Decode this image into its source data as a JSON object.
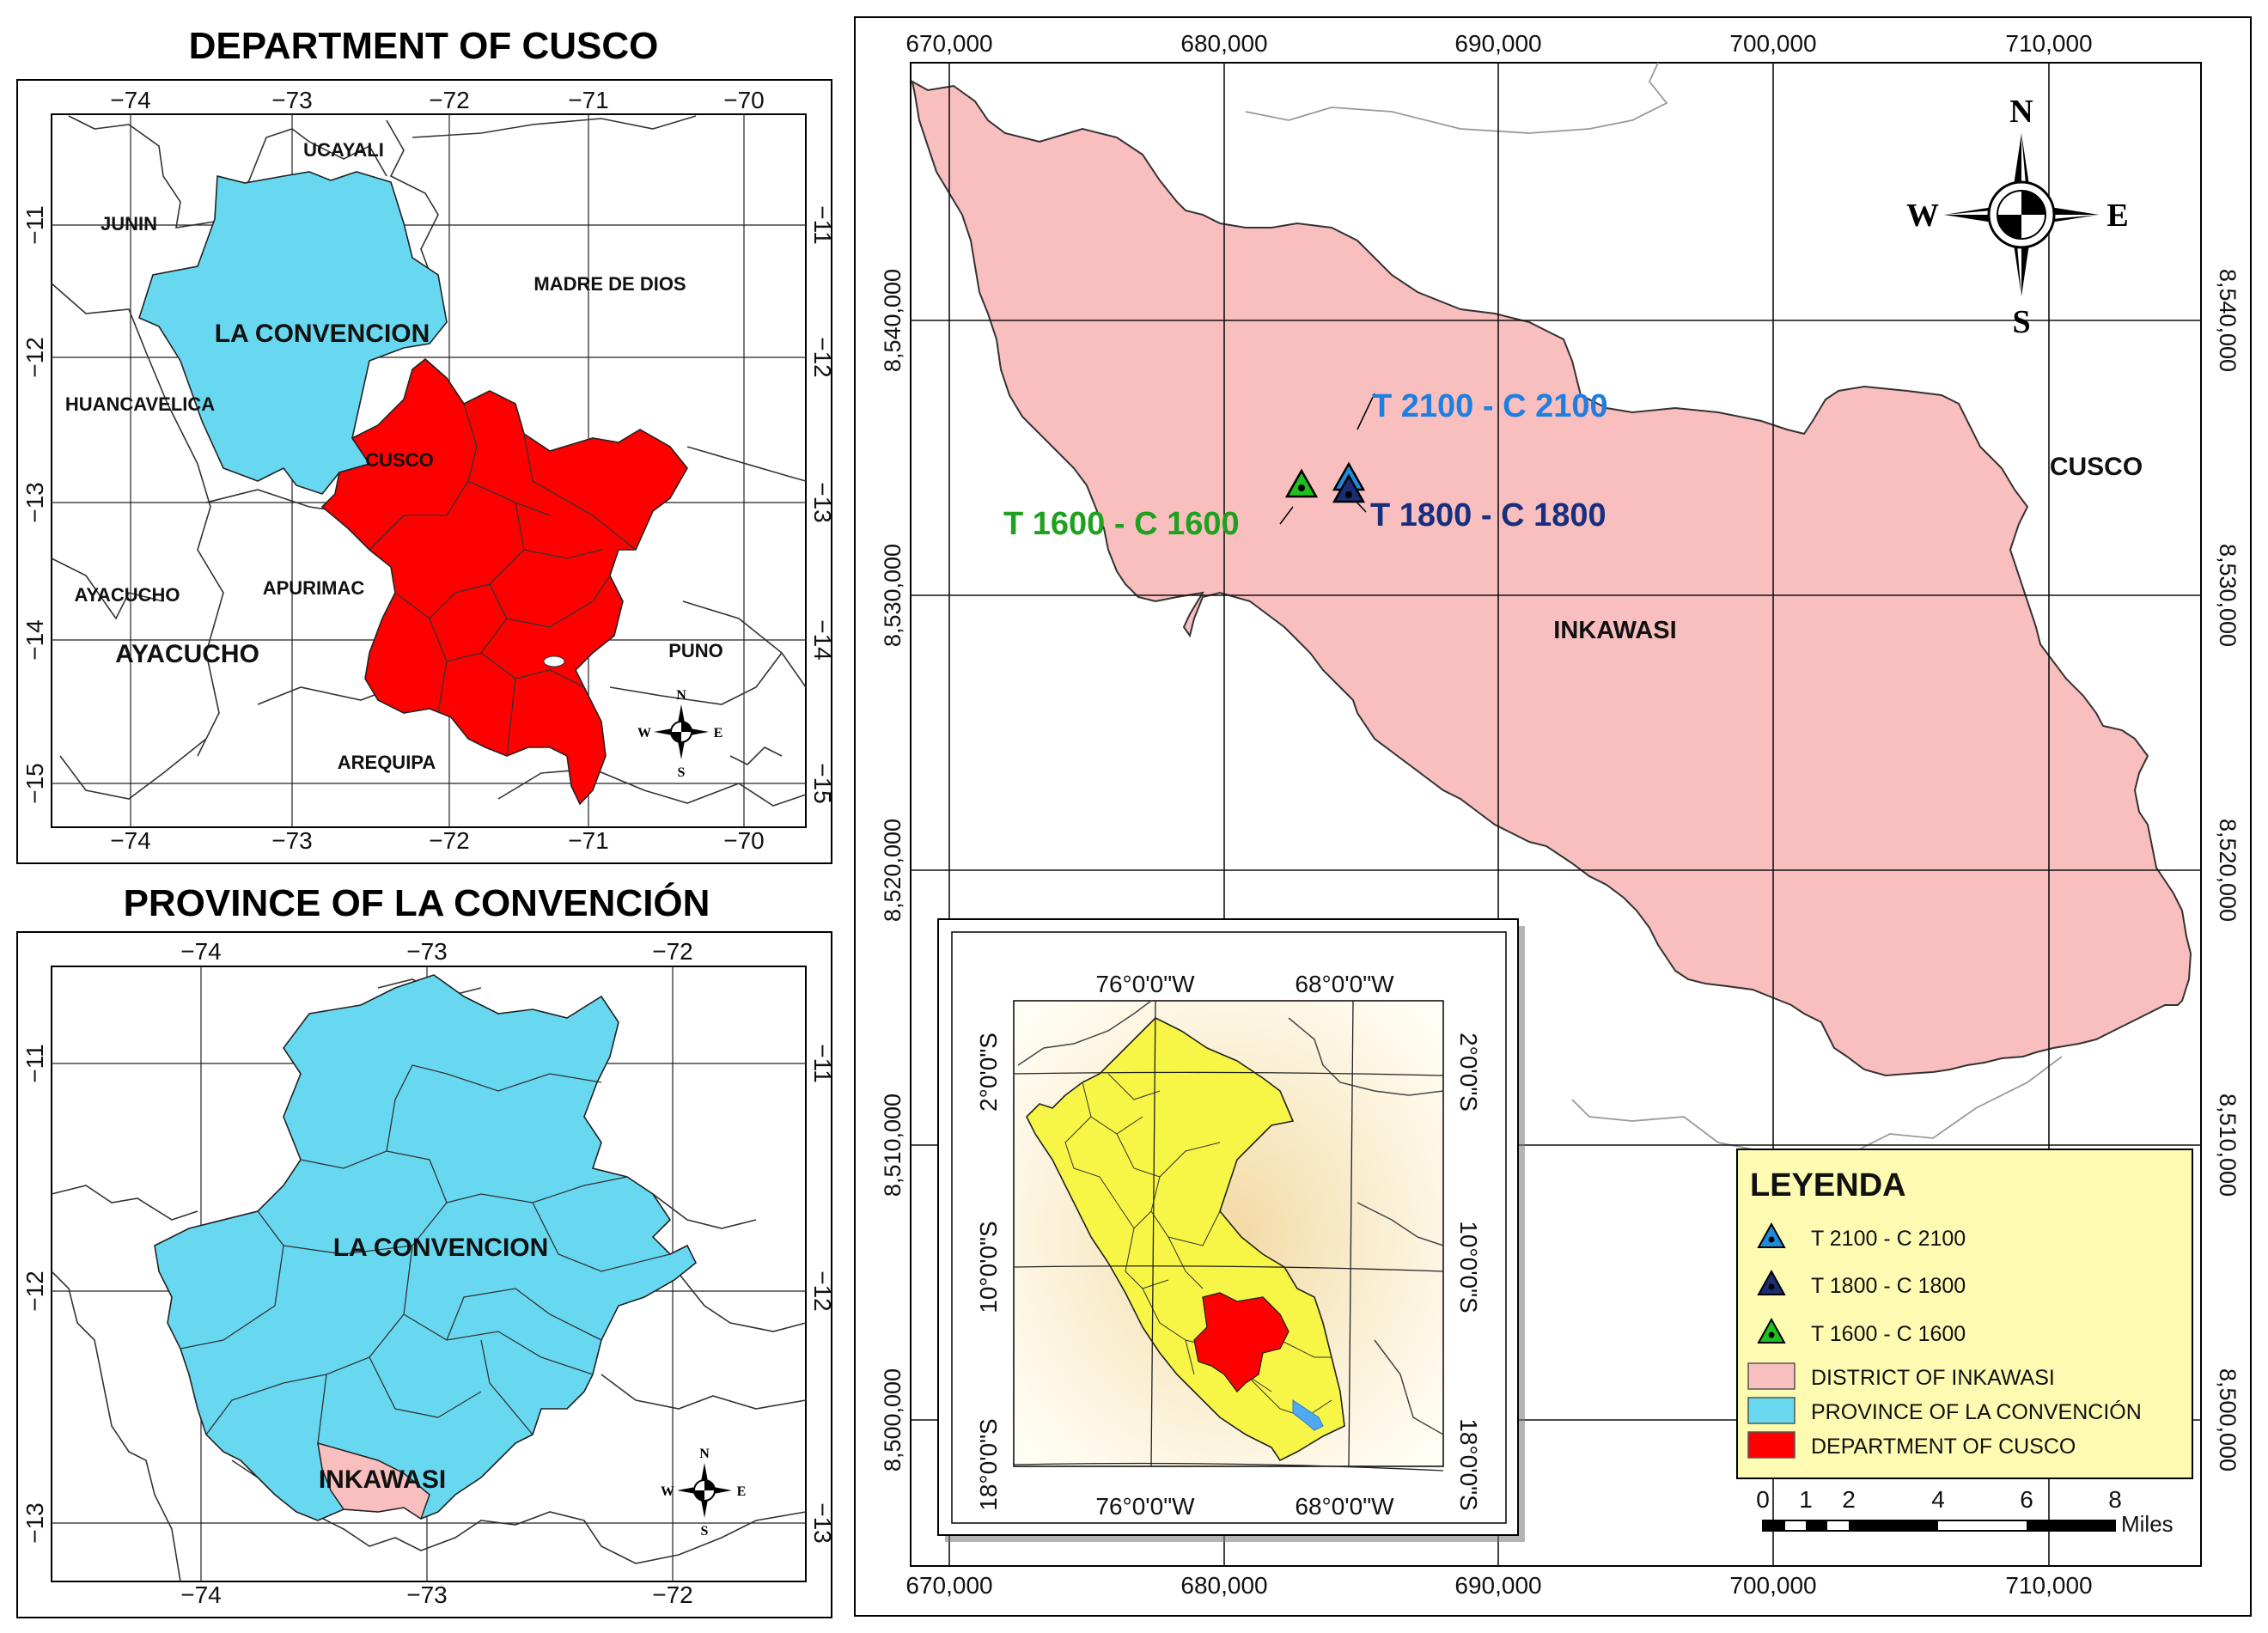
{
  "colors": {
    "cusco": "#ff0000",
    "convencion": "#67d8f0",
    "inkawasi": "#f9bebe",
    "legend_bg": "#fdfbb2",
    "peru": "#f7f545",
    "t2100": "#1e8bd9",
    "t1800": "#1b2d73",
    "t1600": "#1fbf1f",
    "label_t2100": "#1e7fe0",
    "label_t1800": "#172f7e",
    "label_t1600": "#1fa11f"
  },
  "panel_cusco": {
    "title": "DEPARTMENT OF CUSCO",
    "lon_ticks": [
      "−74",
      "−73",
      "−72",
      "−71",
      "−70"
    ],
    "lat_ticks": [
      "−11",
      "−12",
      "−13",
      "−14",
      "−15"
    ],
    "labels": {
      "ucayali": "UCAYALI",
      "junin": "JUNIN",
      "madre_de_dios": "MADRE DE DIOS",
      "la_convencion": "LA CONVENCION",
      "huancavelica": "HUANCAVELICA",
      "cusco": "CUSCO",
      "ayacucho_small": "AYACUCHO",
      "apurimac": "APURIMAC",
      "ayacucho_big": "AYACUCHO",
      "puno": "PUNO",
      "arequipa": "AREQUIPA"
    }
  },
  "panel_convencion": {
    "title": "PROVINCE OF LA CONVENCIÓN",
    "lon_ticks": [
      "−74",
      "−73",
      "−72"
    ],
    "lat_ticks": [
      "−11",
      "−12",
      "−13"
    ],
    "labels": {
      "la_convencion": "LA CONVENCION",
      "inkawasi": "INKAWASI"
    }
  },
  "compass": {
    "n": "N",
    "s": "S",
    "e": "E",
    "w": "W"
  },
  "main_map": {
    "easting_ticks": [
      "670,000",
      "680,000",
      "690,000",
      "700,000",
      "710,000"
    ],
    "northing_ticks": [
      "8,540,000",
      "8,530,000",
      "8,520,000",
      "8,510,000",
      "8,500,000"
    ],
    "labels": {
      "cusco": "CUSCO",
      "inkawasi": "INKAWASI"
    },
    "sites": [
      {
        "id": "t2100",
        "label": "T 2100 - C 2100"
      },
      {
        "id": "t1800",
        "label": "T 1800 - C 1800"
      },
      {
        "id": "t1600",
        "label": "T 1600 - C 1600"
      }
    ]
  },
  "inset": {
    "lon_labels": [
      "76°0'0\"W",
      "68°0'0\"W"
    ],
    "lat_labels": [
      "2°0'0\"S",
      "10°0'0\"S",
      "18°0'0\"S"
    ]
  },
  "legend": {
    "title": "LEYENDA",
    "items": [
      "T 2100 - C 2100",
      "T 1800 - C 1800",
      "T 1600 - C 1600",
      "DISTRICT OF INKAWASI",
      "PROVINCE OF LA CONVENCIÓN",
      "DEPARTMENT OF CUSCO"
    ]
  },
  "scale_bar": {
    "ticks": [
      "0",
      "1",
      "2",
      "4",
      "6",
      "8"
    ],
    "unit": "Miles"
  }
}
